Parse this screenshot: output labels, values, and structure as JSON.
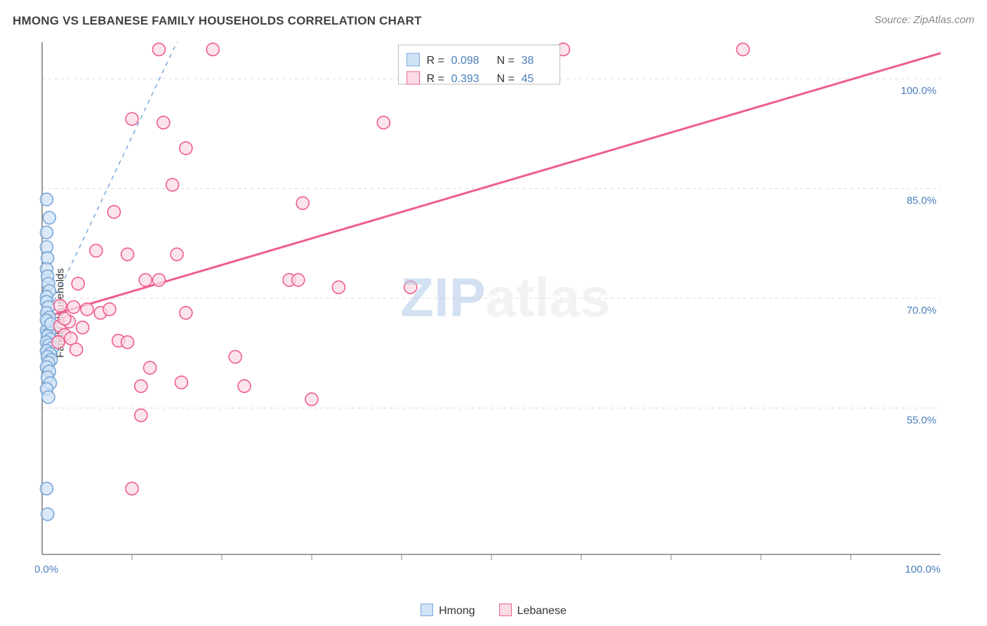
{
  "title": "HMONG VS LEBANESE FAMILY HOUSEHOLDS CORRELATION CHART",
  "source": "Source: ZipAtlas.com",
  "y_axis_label": "Family Households",
  "watermark_a": "ZIP",
  "watermark_b": "atlas",
  "chart": {
    "type": "scatter",
    "background_color": "#ffffff",
    "grid_color": "#d8d8d8",
    "axis_color": "#666666",
    "tick_color": "#888888",
    "xlim": [
      0,
      100
    ],
    "ylim": [
      35,
      105
    ],
    "x_start_label": "0.0%",
    "x_end_label": "100.0%",
    "x_tick_step": 10,
    "y_ticks": [
      55,
      70,
      85,
      100
    ],
    "y_tick_labels": [
      "55.0%",
      "70.0%",
      "85.0%",
      "100.0%"
    ],
    "marker_radius": 9,
    "marker_stroke_width": 1.6,
    "series": [
      {
        "name": "Hmong",
        "color_fill": "#cfe2f6",
        "color_stroke": "#7aa7d8",
        "R": "0.098",
        "N": "38",
        "trend": {
          "x1": 0.5,
          "y1": 67.5,
          "x2": 15,
          "y2": 105,
          "style": "dashed"
        },
        "points": [
          [
            0.5,
            83.5
          ],
          [
            0.8,
            81.0
          ],
          [
            0.5,
            79.0
          ],
          [
            0.5,
            77.0
          ],
          [
            0.6,
            75.5
          ],
          [
            0.5,
            74.0
          ],
          [
            0.6,
            73.0
          ],
          [
            0.7,
            72.0
          ],
          [
            0.8,
            71.0
          ],
          [
            0.5,
            70.2
          ],
          [
            0.5,
            69.5
          ],
          [
            0.7,
            68.8
          ],
          [
            0.5,
            68.0
          ],
          [
            0.8,
            67.4
          ],
          [
            0.6,
            66.8
          ],
          [
            0.7,
            66.2
          ],
          [
            0.5,
            65.6
          ],
          [
            0.8,
            65.2
          ],
          [
            0.6,
            64.8
          ],
          [
            0.9,
            64.4
          ],
          [
            0.5,
            64.0
          ],
          [
            0.8,
            63.6
          ],
          [
            1.1,
            63.2
          ],
          [
            0.5,
            62.8
          ],
          [
            0.9,
            62.4
          ],
          [
            0.6,
            62.0
          ],
          [
            1.0,
            61.6
          ],
          [
            0.7,
            61.2
          ],
          [
            0.5,
            60.6
          ],
          [
            0.8,
            60.0
          ],
          [
            0.6,
            59.2
          ],
          [
            0.9,
            58.4
          ],
          [
            0.5,
            57.6
          ],
          [
            0.7,
            56.5
          ],
          [
            0.5,
            44.0
          ],
          [
            0.6,
            40.5
          ],
          [
            0.5,
            67.0
          ],
          [
            1.0,
            66.5
          ]
        ]
      },
      {
        "name": "Lebanese",
        "color_fill": "#fbdbe4",
        "color_stroke": "#ee5e8b",
        "R": "0.393",
        "N": "45",
        "trend": {
          "x1": 0.5,
          "y1": 67.5,
          "x2": 100,
          "y2": 103.5,
          "style": "solid"
        },
        "points": [
          [
            13.0,
            104.0
          ],
          [
            19.0,
            104.0
          ],
          [
            58.0,
            104.0
          ],
          [
            78.0,
            104.0
          ],
          [
            10.0,
            94.5
          ],
          [
            13.5,
            94.0
          ],
          [
            16.0,
            90.5
          ],
          [
            38.0,
            94.0
          ],
          [
            14.5,
            85.5
          ],
          [
            29.0,
            83.0
          ],
          [
            8.0,
            81.8
          ],
          [
            6.0,
            76.5
          ],
          [
            9.5,
            76.0
          ],
          [
            15.0,
            76.0
          ],
          [
            4.0,
            72.0
          ],
          [
            11.5,
            72.5
          ],
          [
            13.0,
            72.5
          ],
          [
            27.5,
            72.5
          ],
          [
            28.5,
            72.5
          ],
          [
            33.0,
            71.5
          ],
          [
            41.0,
            71.5
          ],
          [
            2.0,
            69.0
          ],
          [
            3.5,
            68.8
          ],
          [
            5.0,
            68.5
          ],
          [
            6.5,
            68.0
          ],
          [
            7.5,
            68.5
          ],
          [
            16.0,
            68.0
          ],
          [
            2.0,
            66.2
          ],
          [
            3.0,
            66.8
          ],
          [
            4.5,
            66.0
          ],
          [
            2.5,
            65.0
          ],
          [
            3.2,
            64.5
          ],
          [
            1.8,
            64.0
          ],
          [
            8.5,
            64.2
          ],
          [
            9.5,
            64.0
          ],
          [
            3.8,
            63.0
          ],
          [
            21.5,
            62.0
          ],
          [
            12.0,
            60.5
          ],
          [
            15.5,
            58.5
          ],
          [
            22.5,
            58.0
          ],
          [
            11.0,
            58.0
          ],
          [
            30.0,
            56.2
          ],
          [
            11.0,
            54.0
          ],
          [
            10.0,
            44.0
          ],
          [
            2.5,
            67.2
          ]
        ]
      }
    ],
    "legend_top": {
      "R_label": "R =",
      "N_label": "N ="
    },
    "legend_bottom": {
      "hmong": "Hmong",
      "lebanese": "Lebanese"
    }
  }
}
